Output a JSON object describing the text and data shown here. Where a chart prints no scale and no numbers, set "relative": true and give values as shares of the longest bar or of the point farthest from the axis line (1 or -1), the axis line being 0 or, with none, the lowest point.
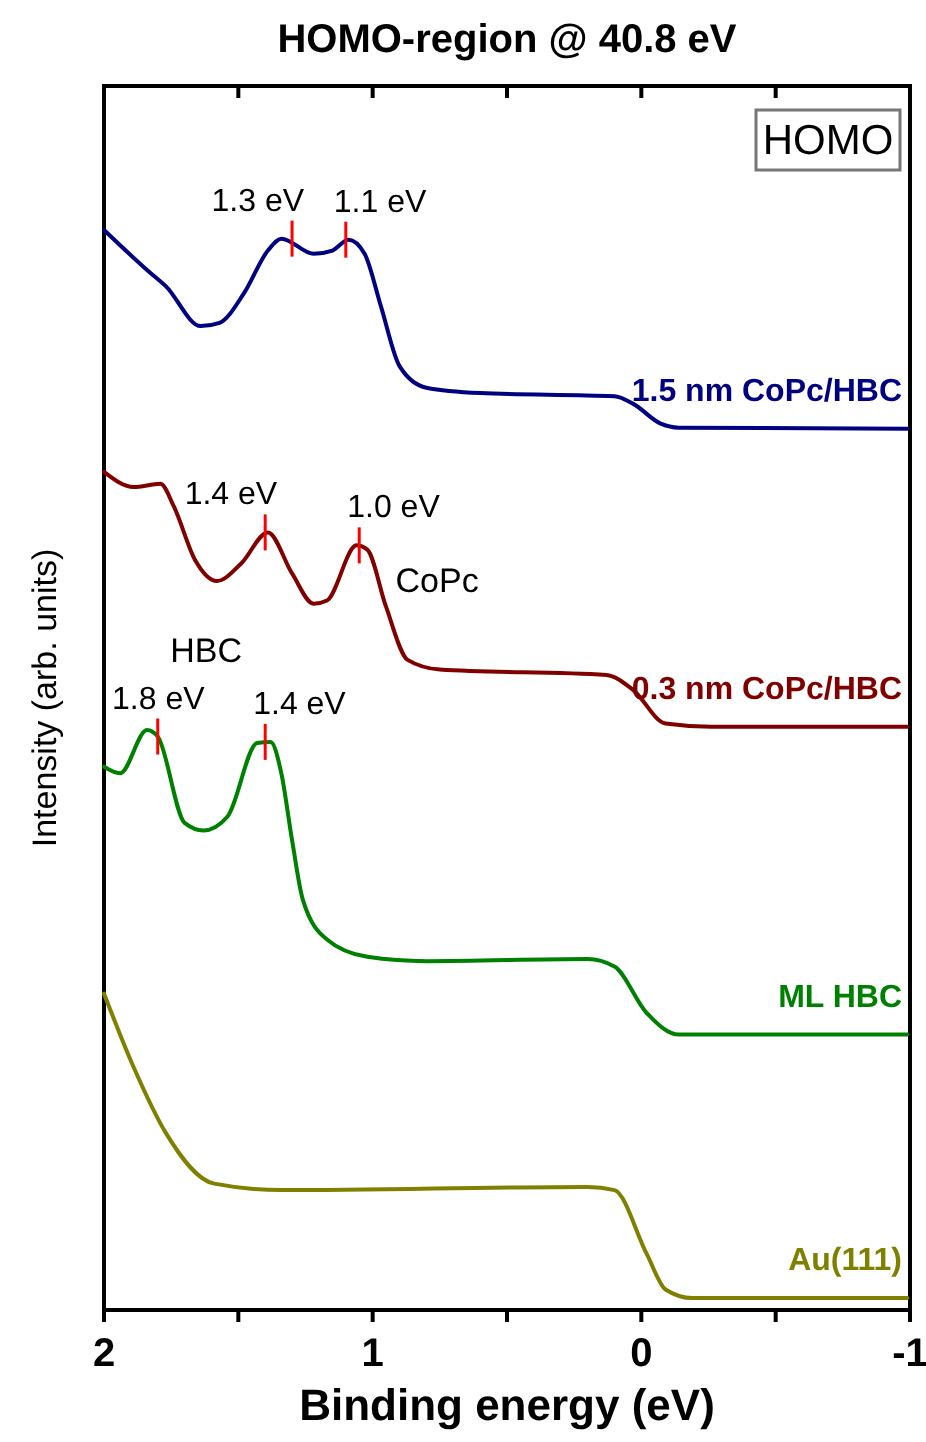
{
  "chart_data": {
    "type": "line",
    "title": "HOMO-region @ 40.8 eV",
    "xlabel": "Binding energy (eV)",
    "ylabel": "Intensity (arb. units)",
    "relative": true,
    "xlim": [
      2,
      -1
    ],
    "xticks": [
      2,
      {
        "value": 1.5,
        "label": null
      },
      1,
      {
        "value": 0.5,
        "label": null
      },
      0,
      {
        "value": -0.5,
        "label": null
      },
      -1
    ],
    "grid": false,
    "legend": false,
    "marker": "none",
    "line_style": "solid",
    "series": [
      {
        "name": "1.5 nm CoPc/HBC",
        "color": "#000080",
        "x": [
          2.0,
          1.84,
          1.77,
          1.64,
          1.57,
          1.48,
          1.39,
          1.34,
          1.22,
          1.15,
          1.09,
          1.03,
          0.97,
          0.9,
          0.8,
          0.6,
          0.1,
          0.03,
          -0.07,
          -0.14,
          -0.99
        ],
        "values": [
          1.0,
          0.963,
          0.948,
          0.911,
          0.914,
          0.941,
          0.981,
          0.992,
          0.978,
          0.981,
          0.991,
          0.978,
          0.93,
          0.874,
          0.854,
          0.849,
          0.846,
          0.839,
          0.821,
          0.817,
          0.816
        ]
      },
      {
        "name": "0.3 nm CoPc/HBC",
        "color": "#800000",
        "x": [
          2.0,
          1.89,
          1.79,
          1.74,
          1.66,
          1.58,
          1.49,
          1.39,
          1.3,
          1.22,
          1.17,
          1.06,
          1.02,
          0.95,
          0.87,
          0.75,
          0.13,
          0.03,
          -0.09,
          -0.26,
          -0.99
        ],
        "values": [
          0.776,
          0.762,
          0.765,
          0.744,
          0.694,
          0.675,
          0.691,
          0.72,
          0.682,
          0.654,
          0.657,
          0.708,
          0.704,
          0.651,
          0.602,
          0.593,
          0.588,
          0.574,
          0.543,
          0.54,
          0.54
        ]
      },
      {
        "name": "ML HBC",
        "color": "#008000",
        "x": [
          2.0,
          1.94,
          1.84,
          1.8,
          1.7,
          1.63,
          1.54,
          1.43,
          1.38,
          1.34,
          1.3,
          1.26,
          1.17,
          1.02,
          0.8,
          0.2,
          0.1,
          -0.02,
          -0.14,
          -0.99
        ],
        "values": [
          0.503,
          0.497,
          0.537,
          0.531,
          0.451,
          0.444,
          0.457,
          0.525,
          0.526,
          0.497,
          0.435,
          0.38,
          0.343,
          0.327,
          0.323,
          0.325,
          0.318,
          0.275,
          0.255,
          0.255
        ]
      },
      {
        "name": "Au(111)",
        "color": "#808000",
        "x": [
          2.0,
          1.89,
          1.77,
          1.59,
          1.34,
          0.2,
          0.1,
          -0.02,
          -0.09,
          -0.19,
          -0.99
        ],
        "values": [
          0.293,
          0.225,
          0.164,
          0.117,
          0.111,
          0.114,
          0.111,
          0.052,
          0.019,
          0.011,
          0.011
        ]
      }
    ],
    "annotations": [
      "HOMO",
      "HBC",
      "CoPc",
      {
        "text": "1.3 eV",
        "x": 1.3,
        "y": 0.992
      },
      {
        "text": "1.1 eV",
        "x": 1.1,
        "y": 0.991
      },
      {
        "text": "1.4 eV",
        "x": 1.4,
        "y": 0.72
      },
      {
        "text": "1.0 eV",
        "x": 1.05,
        "y": 0.708
      },
      {
        "text": "1.8 eV",
        "x": 1.8,
        "y": 0.531
      },
      {
        "text": "1.4 eV",
        "x": 1.4,
        "y": 0.526
      }
    ]
  }
}
